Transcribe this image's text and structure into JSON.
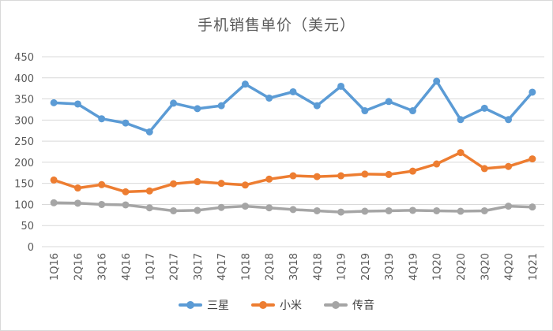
{
  "chart_data": {
    "type": "line",
    "title": "手机销售单价（美元）",
    "categories": [
      "1Q16",
      "2Q16",
      "3Q16",
      "4Q16",
      "1Q17",
      "2Q17",
      "3Q17",
      "4Q17",
      "1Q18",
      "2Q18",
      "3Q18",
      "4Q18",
      "1Q19",
      "2Q19",
      "3Q19",
      "4Q19",
      "1Q20",
      "2Q20",
      "3Q20",
      "4Q20",
      "1Q21"
    ],
    "y_ticks": [
      "0",
      "50",
      "100",
      "150",
      "200",
      "250",
      "300",
      "350",
      "400",
      "450"
    ],
    "ylim": [
      0,
      450
    ],
    "grid": true,
    "legend_position": "bottom",
    "series": [
      {
        "name": "三星",
        "color": "#5b9bd5",
        "values": [
          341,
          338,
          303,
          293,
          272,
          340,
          327,
          334,
          385,
          352,
          367,
          334,
          380,
          322,
          344,
          322,
          392,
          301,
          328,
          301,
          366
        ]
      },
      {
        "name": "小米",
        "color": "#ed7d31",
        "values": [
          158,
          139,
          147,
          130,
          132,
          149,
          154,
          150,
          146,
          160,
          168,
          166,
          168,
          172,
          171,
          179,
          196,
          223,
          185,
          190,
          208
        ]
      },
      {
        "name": "传音",
        "color": "#a5a5a5",
        "values": [
          104,
          103,
          100,
          99,
          92,
          85,
          86,
          93,
          96,
          92,
          88,
          85,
          82,
          84,
          85,
          86,
          85,
          84,
          85,
          96,
          94
        ]
      }
    ]
  }
}
